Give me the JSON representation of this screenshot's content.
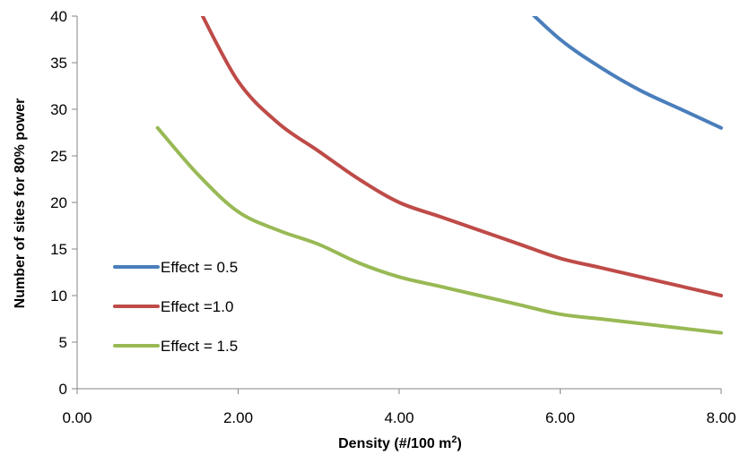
{
  "chart_data": {
    "type": "line",
    "title": "",
    "xlabel_main": "Density (#/100 m",
    "xlabel_sup": "2",
    "xlabel_tail": ")",
    "ylabel": "Number of sites for 80% power",
    "xlim": [
      0,
      8
    ],
    "ylim": [
      0,
      40
    ],
    "x_ticks": [
      0,
      2,
      4,
      6,
      8
    ],
    "x_tick_labels": [
      "0.00",
      "2.00",
      "4.00",
      "6.00",
      "8.00"
    ],
    "y_ticks": [
      0,
      5,
      10,
      15,
      20,
      25,
      30,
      35,
      40
    ],
    "y_tick_labels": [
      "0",
      "5",
      "10",
      "15",
      "20",
      "25",
      "30",
      "35",
      "40"
    ],
    "grid": false,
    "legend_position": "lower-left",
    "series": [
      {
        "name": "Effect = 0.5",
        "color": "#4a7ebb",
        "x": [
          5.5,
          6,
          6.5,
          7,
          7.5,
          8
        ],
        "y": [
          41.5,
          37.5,
          34.5,
          32,
          30,
          28
        ]
      },
      {
        "name": "Effect =1.0",
        "color": "#be4b48",
        "x": [
          1.5,
          2,
          2.5,
          3,
          3.5,
          4,
          4.5,
          5,
          5.5,
          6,
          6.5,
          7,
          7.5,
          8
        ],
        "y": [
          41,
          33,
          28.5,
          25.5,
          22.5,
          20,
          18.5,
          17,
          15.5,
          14,
          13,
          12,
          11,
          10
        ]
      },
      {
        "name": "Effect = 1.5",
        "color": "#98b954",
        "x": [
          1,
          1.5,
          2,
          2.5,
          3,
          3.5,
          4,
          4.5,
          5,
          5.5,
          6,
          6.5,
          7,
          7.5,
          8
        ],
        "y": [
          28,
          23,
          19,
          17,
          15.5,
          13.5,
          12,
          11,
          10,
          9,
          8,
          7.5,
          7,
          6.5,
          6
        ]
      }
    ]
  }
}
